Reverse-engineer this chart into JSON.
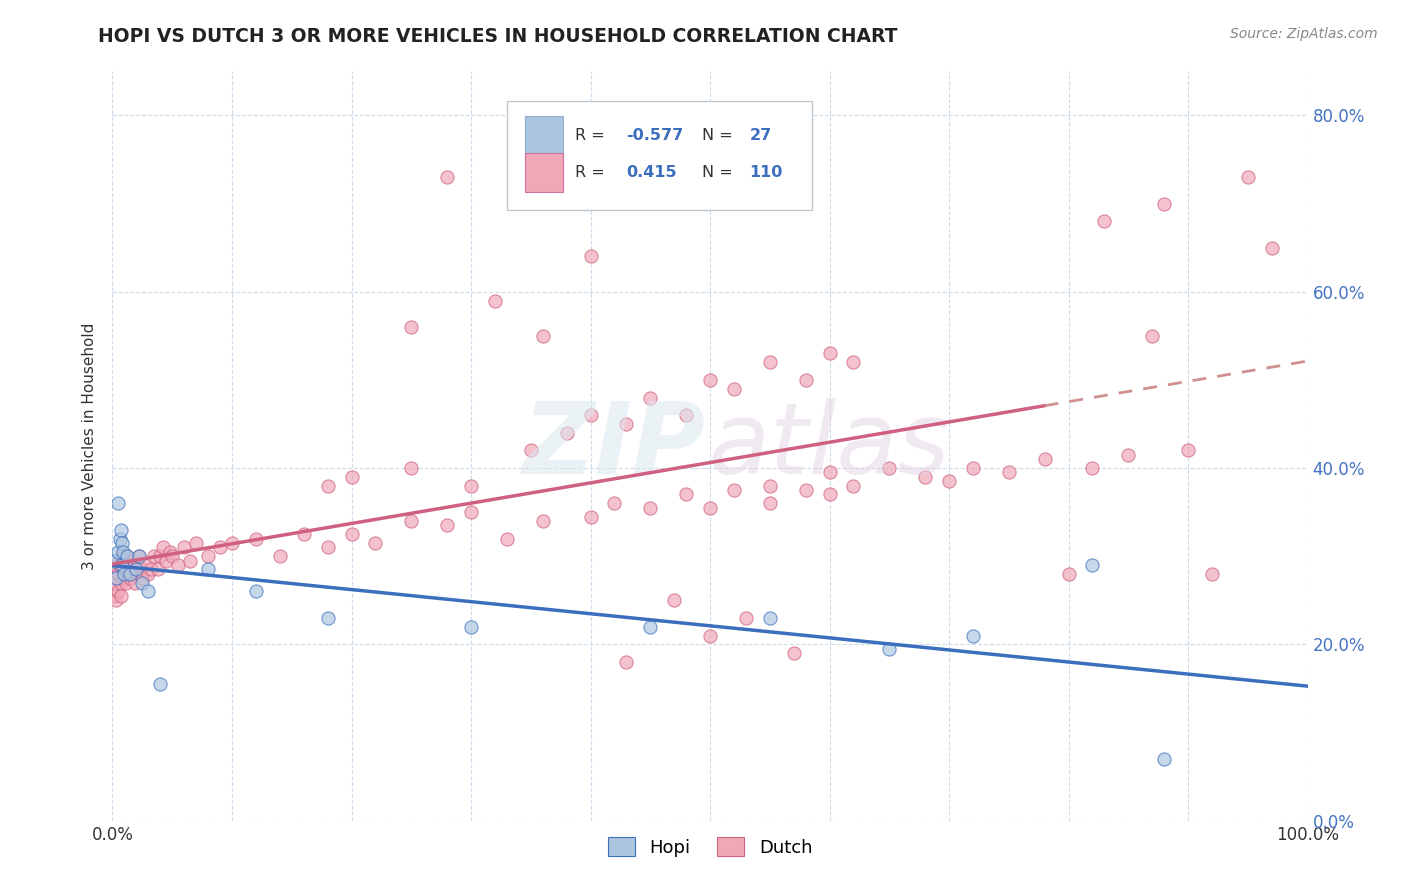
{
  "title": "HOPI VS DUTCH 3 OR MORE VEHICLES IN HOUSEHOLD CORRELATION CHART",
  "source": "Source: ZipAtlas.com",
  "ylabel": "3 or more Vehicles in Household",
  "hopi_R": -0.577,
  "hopi_N": 27,
  "dutch_R": 0.415,
  "dutch_N": 110,
  "hopi_color": "#adc6e0",
  "dutch_color": "#f0a8b8",
  "hopi_line_color": "#3b6fbe",
  "dutch_line_color": "#d06080",
  "dutch_line_dash_color": "#d09090",
  "background_color": "#ffffff",
  "grid_color": "#c8d8e8",
  "xlim": [
    0.0,
    1.0
  ],
  "ylim": [
    0.0,
    0.85
  ],
  "right_ytick_labels": [
    "0.0%",
    "20.0%",
    "40.0%",
    "60.0%",
    "80.0%"
  ],
  "right_ytick_values": [
    0.0,
    0.2,
    0.4,
    0.6,
    0.8
  ],
  "hopi_x": [
    0.001,
    0.003,
    0.005,
    0.005,
    0.006,
    0.007,
    0.008,
    0.008,
    0.009,
    0.01,
    0.012,
    0.015,
    0.02,
    0.022,
    0.025,
    0.03,
    0.04,
    0.08,
    0.12,
    0.18,
    0.3,
    0.45,
    0.55,
    0.65,
    0.72,
    0.82,
    0.88
  ],
  "hopi_y": [
    0.295,
    0.275,
    0.36,
    0.305,
    0.32,
    0.33,
    0.315,
    0.29,
    0.305,
    0.28,
    0.3,
    0.28,
    0.285,
    0.3,
    0.27,
    0.26,
    0.155,
    0.285,
    0.26,
    0.23,
    0.22,
    0.22,
    0.23,
    0.195,
    0.21,
    0.29,
    0.07
  ],
  "dutch_x": [
    0.001,
    0.002,
    0.003,
    0.003,
    0.004,
    0.005,
    0.005,
    0.006,
    0.007,
    0.007,
    0.008,
    0.009,
    0.01,
    0.01,
    0.011,
    0.012,
    0.013,
    0.014,
    0.015,
    0.016,
    0.017,
    0.018,
    0.019,
    0.02,
    0.021,
    0.022,
    0.023,
    0.025,
    0.027,
    0.03,
    0.032,
    0.035,
    0.038,
    0.04,
    0.042,
    0.045,
    0.048,
    0.05,
    0.055,
    0.06,
    0.065,
    0.07,
    0.08,
    0.09,
    0.1,
    0.12,
    0.14,
    0.16,
    0.18,
    0.2,
    0.22,
    0.25,
    0.28,
    0.3,
    0.33,
    0.36,
    0.4,
    0.42,
    0.45,
    0.48,
    0.5,
    0.52,
    0.55,
    0.55,
    0.58,
    0.6,
    0.6,
    0.62,
    0.65,
    0.68,
    0.7,
    0.72,
    0.75,
    0.78,
    0.8,
    0.82,
    0.83,
    0.85,
    0.87,
    0.88,
    0.9,
    0.92,
    0.95,
    0.97,
    0.18,
    0.2,
    0.25,
    0.3,
    0.35,
    0.38,
    0.4,
    0.43,
    0.45,
    0.48,
    0.5,
    0.52,
    0.55,
    0.58,
    0.6,
    0.62,
    0.25,
    0.28,
    0.32,
    0.36,
    0.4,
    0.43,
    0.47,
    0.5,
    0.53,
    0.57
  ],
  "dutch_y": [
    0.255,
    0.27,
    0.29,
    0.25,
    0.275,
    0.28,
    0.26,
    0.29,
    0.27,
    0.255,
    0.3,
    0.275,
    0.285,
    0.295,
    0.27,
    0.3,
    0.28,
    0.285,
    0.275,
    0.29,
    0.295,
    0.28,
    0.27,
    0.285,
    0.29,
    0.3,
    0.285,
    0.275,
    0.29,
    0.28,
    0.285,
    0.3,
    0.285,
    0.3,
    0.31,
    0.295,
    0.305,
    0.3,
    0.29,
    0.31,
    0.295,
    0.315,
    0.3,
    0.31,
    0.315,
    0.32,
    0.3,
    0.325,
    0.31,
    0.325,
    0.315,
    0.34,
    0.335,
    0.35,
    0.32,
    0.34,
    0.345,
    0.36,
    0.355,
    0.37,
    0.355,
    0.375,
    0.36,
    0.38,
    0.375,
    0.37,
    0.395,
    0.38,
    0.4,
    0.39,
    0.385,
    0.4,
    0.395,
    0.41,
    0.28,
    0.4,
    0.68,
    0.415,
    0.55,
    0.7,
    0.42,
    0.28,
    0.73,
    0.65,
    0.38,
    0.39,
    0.4,
    0.38,
    0.42,
    0.44,
    0.46,
    0.45,
    0.48,
    0.46,
    0.5,
    0.49,
    0.52,
    0.5,
    0.53,
    0.52,
    0.56,
    0.73,
    0.59,
    0.55,
    0.64,
    0.18,
    0.25,
    0.21,
    0.23,
    0.19
  ]
}
